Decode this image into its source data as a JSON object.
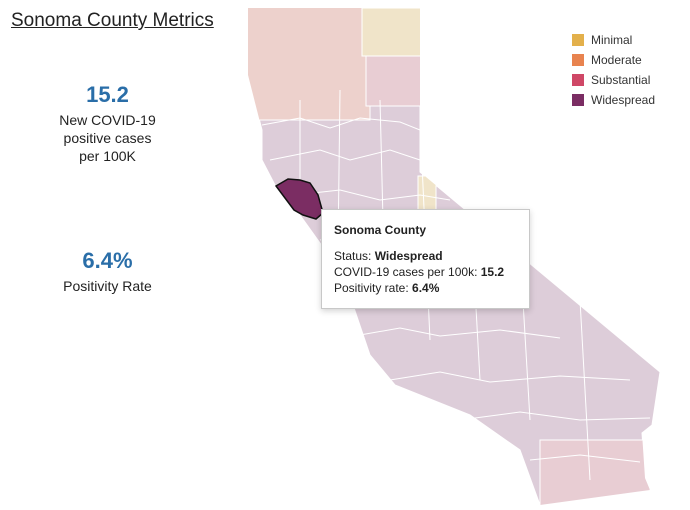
{
  "title": "Sonoma County Metrics",
  "metrics": [
    {
      "value": "15.2",
      "label_lines": [
        "New COVID-19",
        "positive cases",
        "per 100K"
      ]
    },
    {
      "value": "6.4%",
      "label_lines": [
        "Positivity Rate"
      ]
    }
  ],
  "legend": [
    {
      "label": "Minimal",
      "color": "#e3b04b"
    },
    {
      "label": "Moderate",
      "color": "#e8834f"
    },
    {
      "label": "Substantial",
      "color": "#cf4766"
    },
    {
      "label": "Widespread",
      "color": "#7b2d63"
    }
  ],
  "map": {
    "region": "California",
    "selected_county": "Sonoma County",
    "selected_status": "Widespread"
  },
  "tooltip": {
    "title": "Sonoma County",
    "status_label": "Status:",
    "status_value": "Widespread",
    "cases_label": "COVID-19 cases per 100k:",
    "cases_value": "15.2",
    "positivity_label": "Positivity rate:",
    "positivity_value": "6.4%"
  }
}
